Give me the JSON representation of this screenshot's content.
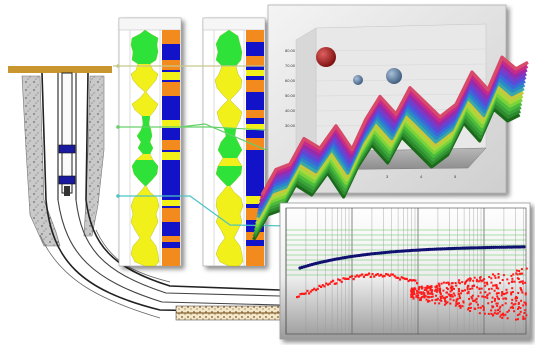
{
  "colors": {
    "background": "#ffffff",
    "casing_cap": "#c8952e",
    "log_green": "#2ee23a",
    "log_yellow": "#f1f01a",
    "log_blue": "#1212c8",
    "log_orange": "#f28a1e",
    "chart_panel": "#e4e4e4",
    "chart_floor": "#9a9a9a",
    "bubble_red": "#9b1717",
    "bubble_blue": "#4e6f91",
    "bubble_grey": "#8fa3b8",
    "blue_curve": "#101070",
    "red_scatter": "#ff1a1a"
  },
  "icons": {
    "wellbore": "wellbore-schematic-icon",
    "log_track_1": "well-log-track-icon",
    "log_track_2": "well-log-track-icon",
    "surface_chart": "3d-surface-chart-icon",
    "log_scatter_chart": "log-scale-scatter-chart-icon"
  },
  "surface_chart": {
    "y_ticks": [
      "80.00",
      "70.00",
      "60.00",
      "50.00",
      "40.00",
      "30.00"
    ],
    "x_ticks": [
      "1",
      "2",
      "3",
      "4",
      "5"
    ]
  }
}
